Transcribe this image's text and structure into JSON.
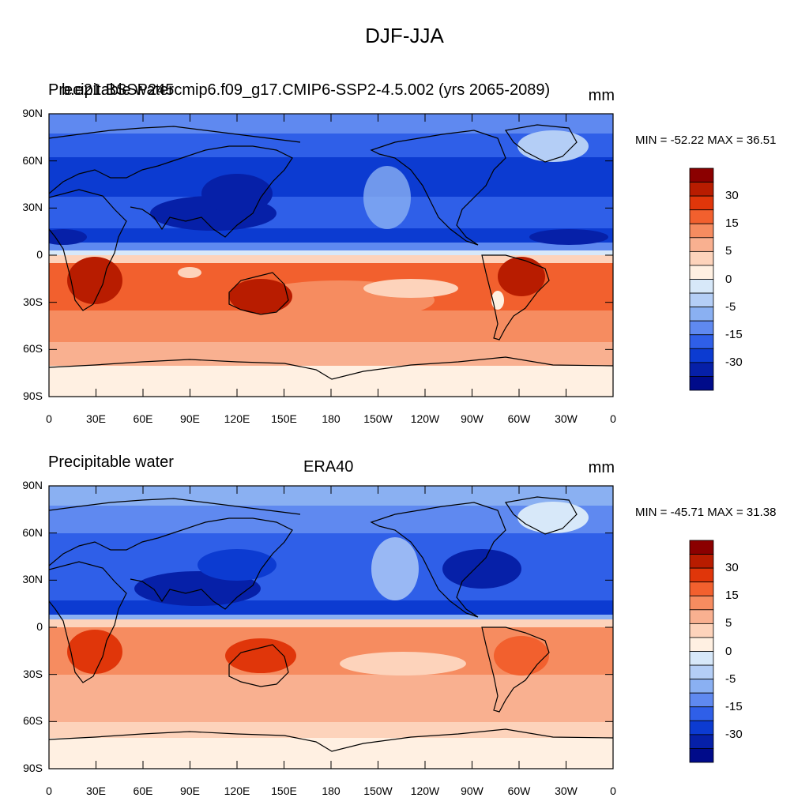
{
  "title": "DJF-JJA",
  "panels": [
    {
      "left_title": "Precipitable water",
      "center_title": "b.e21.BSSP245cmip6.f09_g17.CMIP6-SSP2-4.5.002 (yrs 2065-2089)",
      "units": "mm",
      "stats": "MIN = -52.22 MAX =  36.51"
    },
    {
      "left_title": "Precipitable water",
      "center_title": "ERA40",
      "units": "mm",
      "stats": "MIN = -45.71 MAX =  31.38"
    }
  ],
  "lat_labels": [
    "90N",
    "60N",
    "30N",
    "0",
    "30S",
    "60S",
    "90S"
  ],
  "lon_labels": [
    "0",
    "30E",
    "60E",
    "90E",
    "120E",
    "150E",
    "180",
    "150W",
    "120W",
    "90W",
    "60W",
    "30W",
    "0"
  ],
  "colorbar": {
    "colors": [
      "#8b0000",
      "#b81c00",
      "#e0360a",
      "#f2602e",
      "#f68c60",
      "#f9b090",
      "#fdd3bb",
      "#fff0e2",
      "#d7e8f9",
      "#b4cef6",
      "#8ab0f2",
      "#5f89f0",
      "#2f5fe8",
      "#0c3bd1",
      "#0620a8",
      "#000b8a"
    ],
    "labels": [
      "30",
      "15",
      "5",
      "0",
      "-5",
      "-15",
      "-30"
    ]
  }
}
